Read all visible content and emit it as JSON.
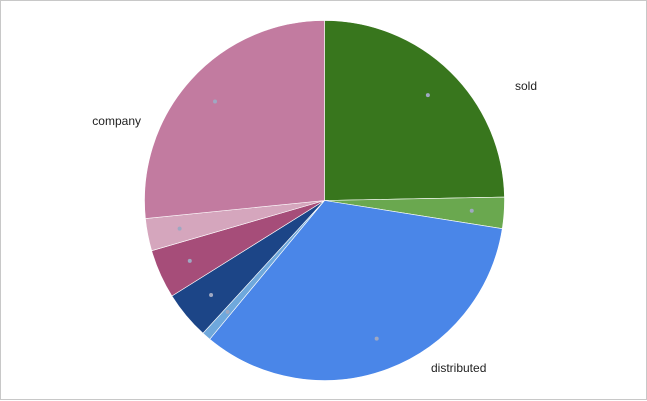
{
  "chart_data": {
    "type": "pie",
    "title": "",
    "slices": [
      {
        "label": "sold",
        "value": 24.7,
        "color": "#38761d",
        "show_label": true
      },
      {
        "label": "",
        "value": 2.8,
        "color": "#6aa84f",
        "show_label": false
      },
      {
        "label": "distributed",
        "value": 33.5,
        "color": "#4a86e8",
        "show_label": true
      },
      {
        "label": "",
        "value": 0.8,
        "color": "#6fa8dc",
        "show_label": false
      },
      {
        "label": "",
        "value": 4.3,
        "color": "#1c4587",
        "show_label": false
      },
      {
        "label": "",
        "value": 4.4,
        "color": "#a64d79",
        "show_label": false
      },
      {
        "label": "",
        "value": 2.9,
        "color": "#d5a6bd",
        "show_label": false
      },
      {
        "label": "company",
        "value": 26.6,
        "color": "#c27ba0",
        "show_label": true
      }
    ],
    "start_angle": "12 o'clock",
    "direction": "clockwise",
    "legend": "none",
    "marker_color": "#9fa8c2"
  }
}
